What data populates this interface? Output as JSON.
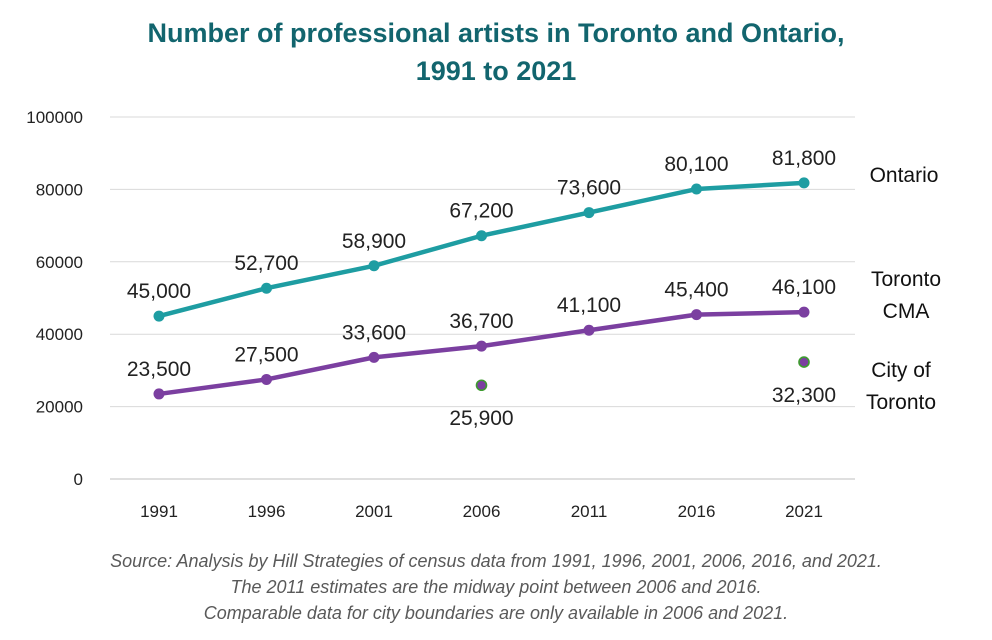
{
  "title_line1": "Number of professional artists in Toronto and Ontario,",
  "title_line2": "1991 to 2021",
  "source_lines": [
    "Source: Analysis by Hill Strategies of census  data from 1991, 1996, 2001, 2006, 2016, and 2021.",
    "The 2011 estimates are the midway point between 2006 and 2016.",
    "Comparable data for city boundaries are only available in 2006 and 2021."
  ],
  "chart_data": {
    "type": "line",
    "title": "Number of professional artists in Toronto and Ontario, 1991 to 2021",
    "categories": [
      "1991",
      "1996",
      "2001",
      "2006",
      "2011",
      "2016",
      "2021"
    ],
    "ylim": [
      0,
      100000
    ],
    "yticks": [
      "0",
      "20000",
      "40000",
      "60000",
      "80000",
      "100000"
    ],
    "grid": true,
    "legend": "series labels at right end of lines",
    "series": [
      {
        "name": "Ontario",
        "color": "#1e9da2",
        "values": [
          45000,
          52700,
          58900,
          67200,
          73600,
          80100,
          81800
        ],
        "labels": [
          "45,000",
          "52,700",
          "58,900",
          "67,200",
          "73,600",
          "80,100",
          "81,800"
        ],
        "line": true
      },
      {
        "name": "Toronto CMA",
        "color": "#7b3fa0",
        "values": [
          23500,
          27500,
          33600,
          36700,
          41100,
          45400,
          46100
        ],
        "labels": [
          "23,500",
          "27,500",
          "33,600",
          "36,700",
          "41,100",
          "45,400",
          "46,100"
        ],
        "line": true
      },
      {
        "name": "City of Toronto",
        "color": "#7b3fa0",
        "marker_edge": "#3e9b2f",
        "values": [
          null,
          null,
          null,
          25900,
          null,
          null,
          32300
        ],
        "labels": [
          null,
          null,
          null,
          "25,900",
          null,
          null,
          "32,300"
        ],
        "line": false
      }
    ]
  }
}
